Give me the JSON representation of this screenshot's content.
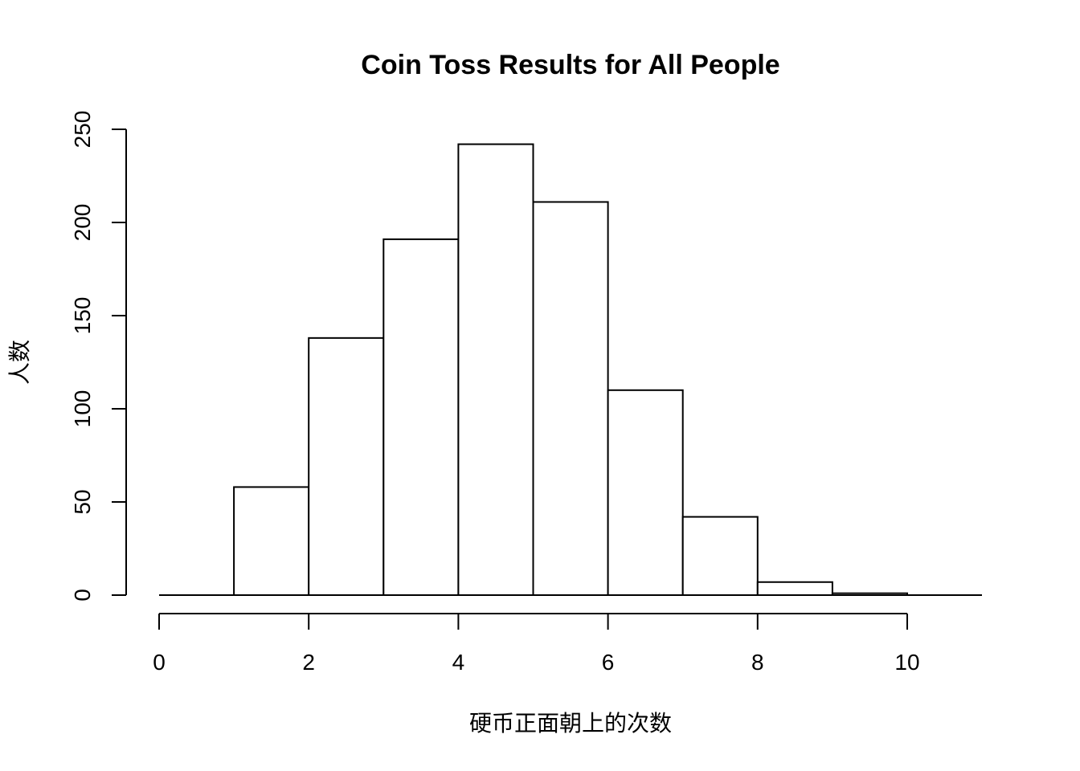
{
  "chart_data": {
    "type": "bar",
    "title": "Coin Toss Results for All People",
    "xlabel": "硬币正面朝上的次数",
    "ylabel": "人数",
    "xlim": [
      0,
      11
    ],
    "ylim": [
      0,
      250
    ],
    "x_ticks": [
      0,
      2,
      4,
      6,
      8,
      10
    ],
    "y_ticks": [
      0,
      50,
      100,
      150,
      200,
      250
    ],
    "bins": [
      {
        "start": 0,
        "end": 1,
        "count": 0
      },
      {
        "start": 1,
        "end": 2,
        "count": 58
      },
      {
        "start": 2,
        "end": 3,
        "count": 138
      },
      {
        "start": 3,
        "end": 4,
        "count": 191
      },
      {
        "start": 4,
        "end": 5,
        "count": 242
      },
      {
        "start": 5,
        "end": 6,
        "count": 211
      },
      {
        "start": 6,
        "end": 7,
        "count": 110
      },
      {
        "start": 7,
        "end": 8,
        "count": 42
      },
      {
        "start": 8,
        "end": 9,
        "count": 7
      },
      {
        "start": 9,
        "end": 10,
        "count": 1
      },
      {
        "start": 10,
        "end": 11,
        "count": 0
      }
    ],
    "grid": false,
    "legend": "none",
    "colors": {
      "fill": "#ffffff",
      "stroke": "#000000"
    }
  }
}
